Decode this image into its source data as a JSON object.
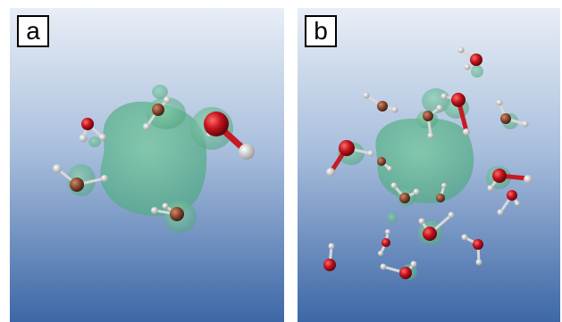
{
  "panels": [
    {
      "label": "a"
    },
    {
      "label": "b"
    }
  ],
  "colors": {
    "background_top": "#e4ebf4",
    "background_bottom": "#3f6aa8",
    "isosurface": "#5fb992",
    "oxygen": "#c0121c",
    "hydrogen": "#f2f2f2",
    "bond_red": "#c81a24"
  }
}
